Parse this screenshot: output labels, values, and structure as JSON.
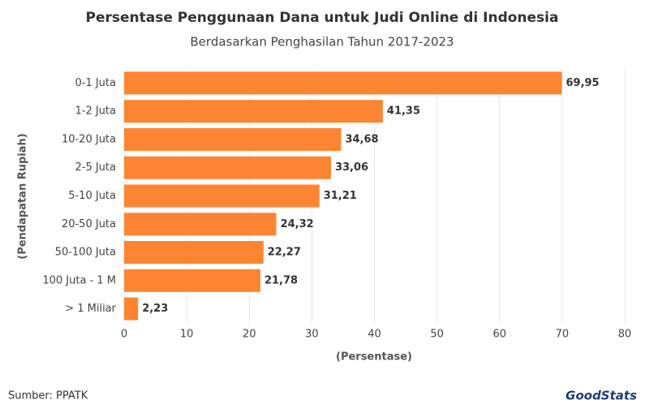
{
  "chart_data": {
    "type": "bar",
    "orientation": "horizontal",
    "title": "Persentase Penggunaan Dana untuk Judi Online di Indonesia",
    "subtitle": "Berdasarkan Penghasilan Tahun 2017-2023",
    "x_label": "(Persentase)",
    "y_label": "(Pendapatan Rupiah)",
    "categories": [
      "0-1 Juta",
      "1-2 Juta",
      "10-20 Juta",
      "2-5 Juta",
      "5-10 Juta",
      "20-50 Juta",
      "50-100 Juta",
      "100 Juta - 1 M",
      "> 1 Miliar"
    ],
    "values": [
      69.95,
      41.35,
      34.68,
      33.06,
      31.21,
      24.32,
      22.27,
      21.78,
      2.23
    ],
    "value_labels": [
      "69,95",
      "41,35",
      "34,68",
      "33,06",
      "31,21",
      "24,32",
      "22,27",
      "21,78",
      "2,23"
    ],
    "color": "#fd8532",
    "xlim": [
      0,
      80
    ],
    "xticks": [
      0,
      10,
      20,
      30,
      40,
      50,
      60,
      70,
      80
    ],
    "grid": true
  },
  "source": "Sumber: PPATK",
  "logo": "GoodStats"
}
